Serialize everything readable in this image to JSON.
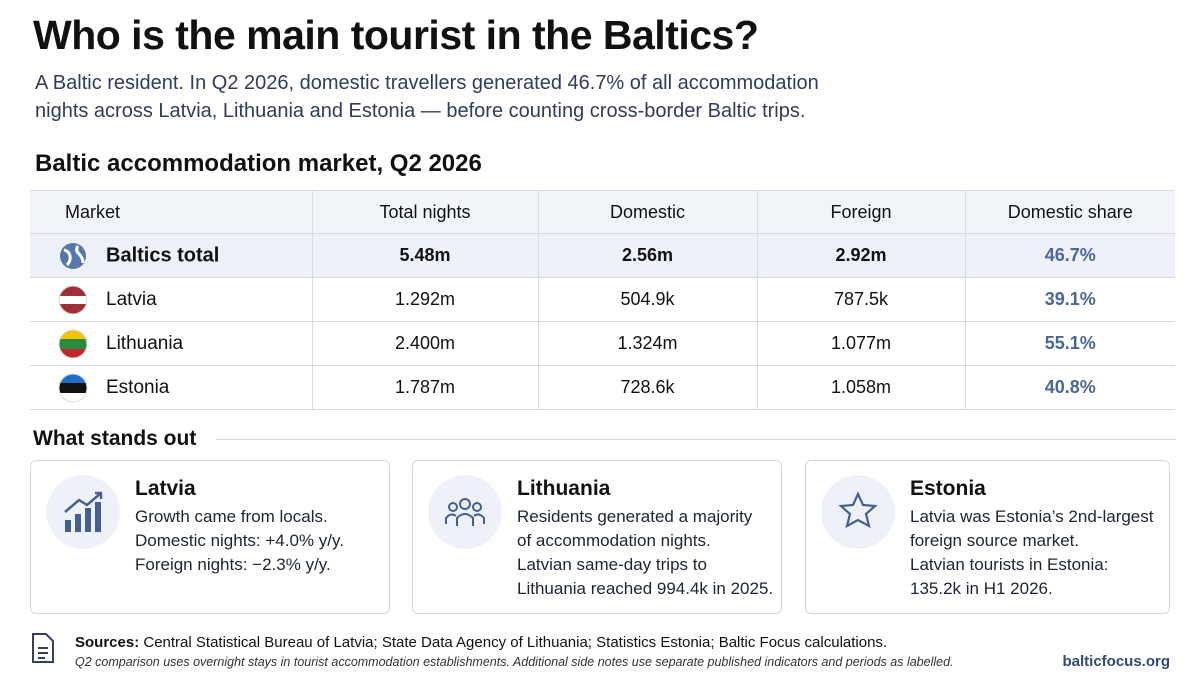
{
  "header": {
    "title": "Who is the main tourist in the Baltics?",
    "subtitle_lines": [
      "A Baltic resident. In Q2 2026, domestic travellers generated 46.7% of all accommodation",
      "nights across Latvia, Lithuania and Estonia — before counting cross-border Baltic trips."
    ]
  },
  "table": {
    "title": "Baltic accommodation market, Q2 2026",
    "columns": [
      "Market",
      "Total nights",
      "Domestic",
      "Foreign",
      "Domestic share"
    ],
    "rows": [
      [
        "Baltics total",
        "5.48m",
        "2.56m",
        "2.92m",
        "46.7%"
      ],
      [
        "Latvia",
        "1.292m",
        "504.9k",
        "787.5k",
        "39.1%"
      ],
      [
        "Lithuania",
        "2.400m",
        "1.324m",
        "1.077m",
        "55.1%"
      ],
      [
        "Estonia",
        "1.787m",
        "728.6k",
        "1.058m",
        "40.8%"
      ]
    ]
  },
  "highlights": {
    "title": "What stands out",
    "cards": [
      {
        "title": "Latvia",
        "lines": [
          "Growth came from locals.",
          "Domestic nights: +4.0% y/y.",
          "Foreign nights: −2.3% y/y."
        ]
      },
      {
        "title": "Lithuania",
        "lines": [
          "Residents generated a majority",
          "of accommodation nights.",
          "Latvian same-day trips to",
          "Lithuania reached 994.4k in 2025."
        ]
      },
      {
        "title": "Estonia",
        "lines": [
          "Latvia was Estonia’s 2nd-largest",
          "foreign source market.",
          "Latvian tourists in Estonia:",
          "135.2k in H1 2026."
        ]
      }
    ]
  },
  "footer": {
    "sources_label": "Sources:",
    "sources": "Central Statistical Bureau of Latvia; State Data Agency of Lithuania; Statistics Estonia; Baltic Focus calculations.",
    "note": "Q2 comparison uses overnight stays in tourist accommodation establishments. Additional side notes use separate published indicators and periods as labelled.",
    "site": "balticfocus.org"
  }
}
